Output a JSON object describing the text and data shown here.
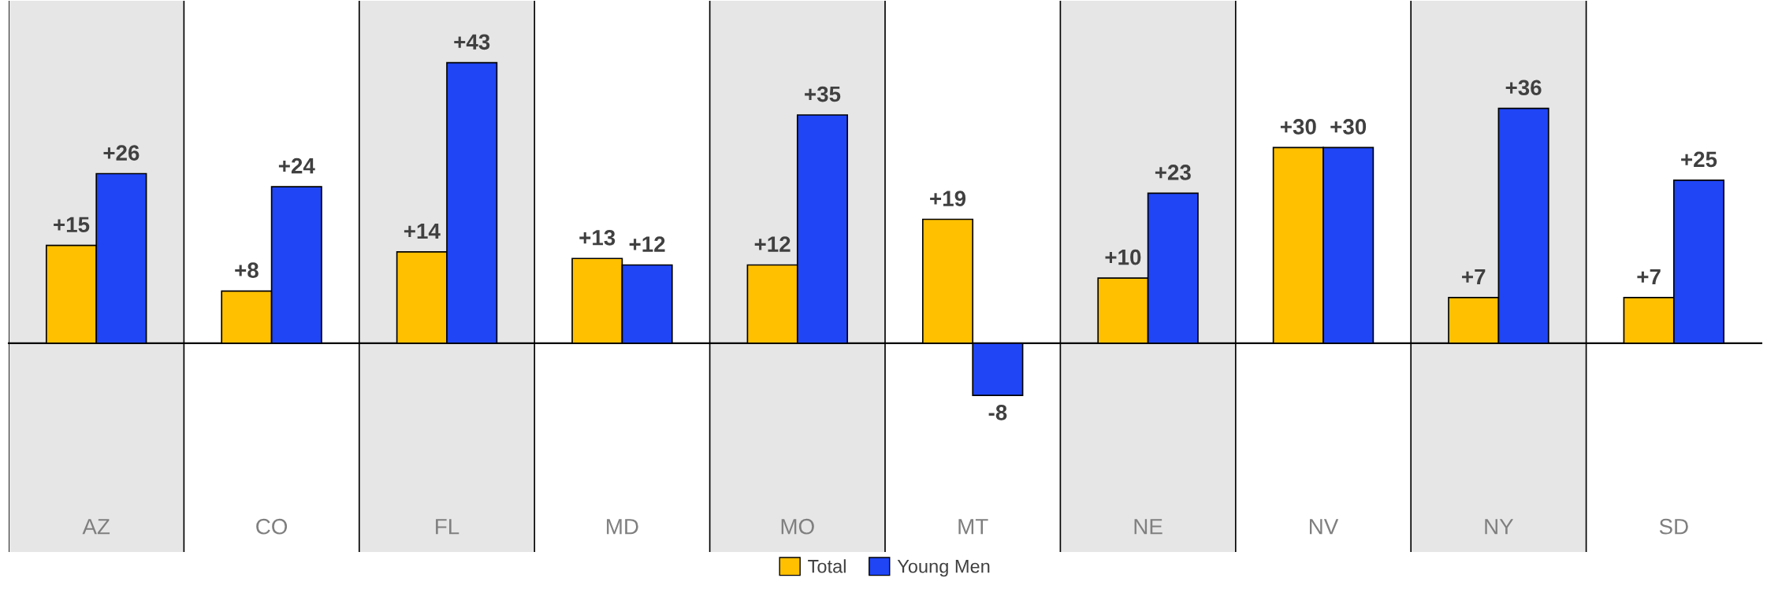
{
  "chart_data": {
    "type": "bar",
    "categories": [
      "AZ",
      "CO",
      "FL",
      "MD",
      "MO",
      "MT",
      "NE",
      "NV",
      "NY",
      "SD"
    ],
    "series": [
      {
        "name": "Total",
        "color": "#ffc000",
        "values": [
          15,
          8,
          14,
          13,
          12,
          19,
          10,
          30,
          7,
          7
        ],
        "value_labels": [
          "+15",
          "+8",
          "+14",
          "+13",
          "+12",
          "+19",
          "+10",
          "+30",
          "+7",
          "+7"
        ]
      },
      {
        "name": "Young Men",
        "color": "#1f45f5",
        "values": [
          26,
          24,
          43,
          12,
          35,
          -8,
          23,
          30,
          36,
          25
        ],
        "value_labels": [
          "+26",
          "+24",
          "+43",
          "+12",
          "+35",
          "-8",
          "+23",
          "+30",
          "+36",
          "+25"
        ]
      }
    ],
    "ylim": [
      -32,
      52.5
    ],
    "bands": [
      {
        "axis": "x",
        "from": "AZ",
        "to": "AZ",
        "color": "#e6e6e6"
      },
      {
        "axis": "x",
        "from": "FL",
        "to": "FL",
        "color": "#e6e6e6"
      },
      {
        "axis": "x",
        "from": "MO",
        "to": "MO",
        "color": "#e6e6e6"
      },
      {
        "axis": "x",
        "from": "NE",
        "to": "NE",
        "color": "#e6e6e6"
      },
      {
        "axis": "x",
        "from": "NY",
        "to": "NY",
        "color": "#e6e6e6"
      }
    ],
    "legend": "bottom",
    "grid": false
  }
}
